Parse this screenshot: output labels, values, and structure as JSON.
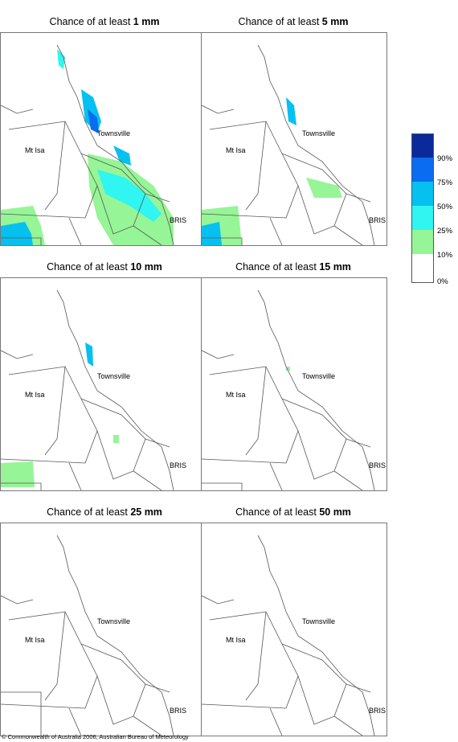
{
  "panels": [
    {
      "prefix": "Chance of at least ",
      "amount": "1 mm"
    },
    {
      "prefix": "Chance of at least ",
      "amount": "5 mm"
    },
    {
      "prefix": "Chance of at least ",
      "amount": "10 mm"
    },
    {
      "prefix": "Chance of at least ",
      "amount": "15 mm"
    },
    {
      "prefix": "Chance of at least ",
      "amount": "25 mm"
    },
    {
      "prefix": "Chance of at least ",
      "amount": "50 mm"
    }
  ],
  "places": {
    "townsville": "Townsville",
    "mt_isa": "Mt Isa",
    "brisbane": "BRIS"
  },
  "legend": {
    "labels": [
      "90%",
      "75%",
      "50%",
      "25%",
      "10%",
      "0%"
    ],
    "colors": [
      "#0a2a9c",
      "#0a6cf0",
      "#06c0f0",
      "#30f5f0",
      "#96f596",
      "#ffffff"
    ]
  },
  "copyright": "© Commonwealth of Australia 2006, Australian Bureau of Meteorology"
}
